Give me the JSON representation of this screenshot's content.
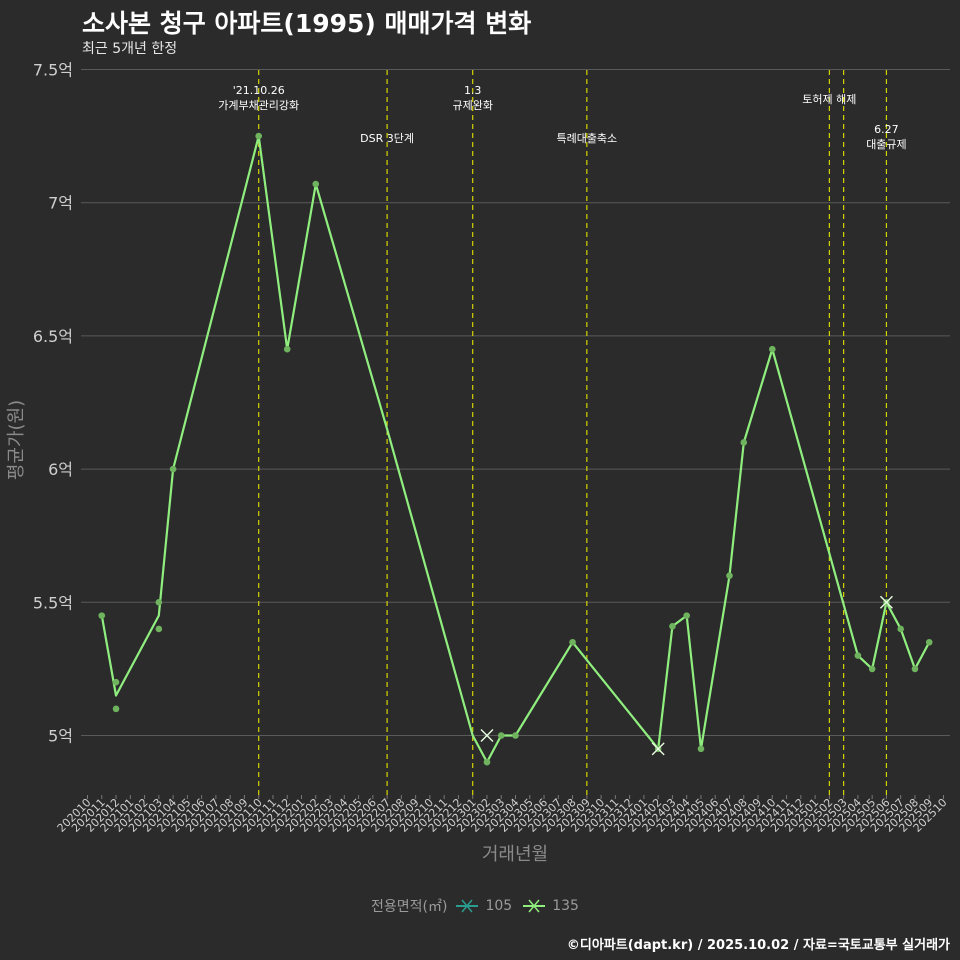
{
  "header": {
    "title": "소사본 청구 아파트(1995) 매매가격 변화",
    "subtitle": "최근 5개년 한정"
  },
  "caption": "©디아파트(dapt.kr) / 2025.10.02 / 자료=국토교통부 실거래가",
  "colors": {
    "background": "#2b2b2b",
    "grid": "#5a5a5a",
    "event_line": "#d4d400",
    "series_105": "#2a9d8f",
    "series_135": "#90ee7f",
    "points": "#6fb35f",
    "axis_text": "#cfcfcf",
    "axis_title": "#8a8a8a"
  },
  "chart_data": {
    "type": "line",
    "title": "소사본 청구 아파트(1995) 매매가격 변화",
    "xlabel": "거래년월",
    "ylabel": "평균가(원)",
    "ylim": [
      4.8,
      7.5
    ],
    "yticks": [
      5,
      5.5,
      6,
      6.5,
      7,
      7.5
    ],
    "ytick_labels": [
      "5억",
      "5.5억",
      "6억",
      "6.5억",
      "7억",
      "7.5억"
    ],
    "categories": [
      "202010",
      "202011",
      "202012",
      "202101",
      "202102",
      "202103",
      "202104",
      "202105",
      "202106",
      "202107",
      "202108",
      "202109",
      "202110",
      "202111",
      "202112",
      "202201",
      "202202",
      "202203",
      "202204",
      "202205",
      "202206",
      "202207",
      "202208",
      "202209",
      "202210",
      "202211",
      "202212",
      "202301",
      "202302",
      "202303",
      "202304",
      "202305",
      "202306",
      "202307",
      "202308",
      "202309",
      "202310",
      "202311",
      "202312",
      "202401",
      "202402",
      "202403",
      "202404",
      "202405",
      "202406",
      "202407",
      "202408",
      "202409",
      "202410",
      "202411",
      "202412",
      "202501",
      "202502",
      "202503",
      "202504",
      "202505",
      "202506",
      "202507",
      "202508",
      "202509",
      "202510"
    ],
    "legend_title": "전용면적(㎡)",
    "series": [
      {
        "name": "105",
        "color": "#2a9d8f",
        "points": [
          [
            "202302",
            5.0
          ],
          [
            "202402",
            4.95
          ],
          [
            "202506",
            5.5
          ]
        ]
      },
      {
        "name": "135",
        "color": "#90ee7f",
        "line": [
          [
            "202011",
            5.45
          ],
          [
            "202012",
            5.15
          ],
          [
            "202103",
            5.45
          ],
          [
            "202104",
            6.0
          ],
          [
            "202110",
            7.25
          ],
          [
            "202112",
            6.45
          ],
          [
            "202202",
            7.07
          ],
          [
            "202207",
            6.15
          ],
          [
            "202301",
            5.0
          ],
          [
            "202302",
            4.9
          ],
          [
            "202303",
            5.0
          ],
          [
            "202304",
            5.0
          ],
          [
            "202308",
            5.35
          ],
          [
            "202402",
            4.95
          ],
          [
            "202403",
            5.41
          ],
          [
            "202404",
            5.45
          ],
          [
            "202405",
            4.95
          ],
          [
            "202407",
            5.6
          ],
          [
            "202408",
            6.1
          ],
          [
            "202410",
            6.45
          ],
          [
            "202504",
            5.3
          ],
          [
            "202505",
            5.25
          ],
          [
            "202506",
            5.5
          ],
          [
            "202507",
            5.4
          ],
          [
            "202508",
            5.25
          ],
          [
            "202509",
            5.35
          ]
        ],
        "points": [
          [
            "202011",
            5.45
          ],
          [
            "202012",
            5.2
          ],
          [
            "202012",
            5.1
          ],
          [
            "202103",
            5.5
          ],
          [
            "202103",
            5.4
          ],
          [
            "202104",
            6.0
          ],
          [
            "202110",
            7.25
          ],
          [
            "202112",
            6.45
          ],
          [
            "202202",
            7.07
          ],
          [
            "202302",
            4.9
          ],
          [
            "202303",
            5.0
          ],
          [
            "202304",
            5.0
          ],
          [
            "202308",
            5.35
          ],
          [
            "202402",
            4.95
          ],
          [
            "202403",
            5.41
          ],
          [
            "202404",
            5.45
          ],
          [
            "202405",
            4.95
          ],
          [
            "202407",
            5.6
          ],
          [
            "202408",
            6.1
          ],
          [
            "202410",
            6.45
          ],
          [
            "202504",
            5.3
          ],
          [
            "202505",
            5.25
          ],
          [
            "202506",
            5.5
          ],
          [
            "202507",
            5.4
          ],
          [
            "202508",
            5.25
          ],
          [
            "202509",
            5.35
          ]
        ],
        "x_markers": [
          [
            "202302",
            5.0
          ],
          [
            "202402",
            4.95
          ],
          [
            "202506",
            5.5
          ]
        ]
      }
    ],
    "events": [
      {
        "month": "202110",
        "lines": [
          "'21.10.26",
          "가계부채관리강화"
        ],
        "level": "top"
      },
      {
        "month": "202207",
        "lines": [
          "DSR 3단계"
        ],
        "level": "mid"
      },
      {
        "month": "202301",
        "lines": [
          "1.3",
          "규제완화"
        ],
        "level": "top"
      },
      {
        "month": "202309",
        "lines": [
          "특례대출축소"
        ],
        "level": "mid"
      },
      {
        "month": "202502",
        "lines": [
          "토허제 해제"
        ],
        "level": "top2"
      },
      {
        "month": "202503",
        "lines": [],
        "level": "none"
      },
      {
        "month": "202506",
        "lines": [
          "6.27",
          "대출규제"
        ],
        "level": "low"
      }
    ]
  }
}
